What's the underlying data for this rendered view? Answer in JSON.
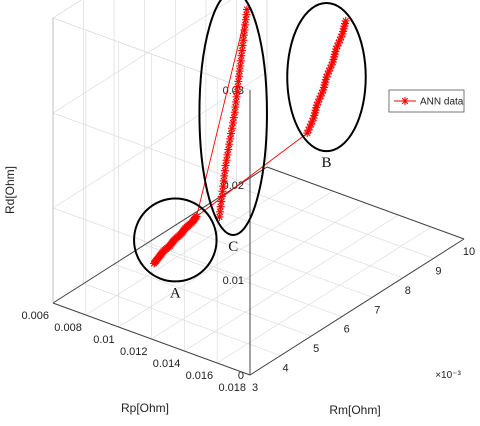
{
  "chart_data": {
    "type": "scatter3d",
    "title": "",
    "axes": {
      "x": {
        "label": "Rm[Ohm]",
        "ticks": [
          "3",
          "4",
          "5",
          "6",
          "7",
          "8",
          "9",
          "10"
        ],
        "range": [
          3,
          10
        ],
        "exponent_label": "×10⁻³"
      },
      "y": {
        "label": "Rp[Ohm]",
        "ticks": [
          "0.006",
          "0.008",
          "0.01",
          "0.012",
          "0.014",
          "0.016",
          "0.018"
        ],
        "range": [
          0.006,
          0.018
        ]
      },
      "z": {
        "label": "Rd[Ohm]",
        "ticks": [
          "0",
          "0.01",
          "0.02",
          "0.03"
        ],
        "range": [
          0,
          0.03
        ]
      }
    },
    "grid": true,
    "legend": {
      "position": "top-right",
      "entries": [
        "ANN data"
      ]
    },
    "series": [
      {
        "name": "ANN data",
        "color": "#ff0000",
        "marker": "asterisk",
        "clusters": [
          {
            "label": "A",
            "points": [
              [
                5.5,
                0.0075,
                0.0
              ],
              [
                5.6,
                0.0076,
                0.0005
              ],
              [
                5.7,
                0.0077,
                0.001
              ],
              [
                5.8,
                0.0079,
                0.0015
              ],
              [
                5.9,
                0.008,
                0.002
              ],
              [
                6.0,
                0.0082,
                0.0025
              ],
              [
                6.1,
                0.0083,
                0.003
              ],
              [
                6.2,
                0.0085,
                0.0035
              ],
              [
                6.3,
                0.0086,
                0.004
              ]
            ]
          },
          {
            "label": "B",
            "points": [
              [
                6.4,
                0.0175,
                0.03
              ],
              [
                6.4,
                0.0173,
                0.0285
              ],
              [
                6.3,
                0.0171,
                0.027
              ],
              [
                6.3,
                0.0169,
                0.0255
              ],
              [
                6.2,
                0.0167,
                0.024
              ],
              [
                6.2,
                0.0165,
                0.0225
              ],
              [
                6.1,
                0.0163,
                0.021
              ],
              [
                6.1,
                0.0161,
                0.0195
              ],
              [
                6.0,
                0.0159,
                0.018
              ]
            ]
          },
          {
            "label": "C",
            "points": [
              [
                7.8,
                0.0072,
                0.0
              ],
              [
                7.9,
                0.0072,
                0.0025
              ],
              [
                8.0,
                0.0072,
                0.005
              ],
              [
                8.15,
                0.0072,
                0.0075
              ],
              [
                8.3,
                0.0072,
                0.01
              ],
              [
                8.4,
                0.0072,
                0.0125
              ],
              [
                8.5,
                0.0072,
                0.015
              ],
              [
                8.6,
                0.0072,
                0.0175
              ],
              [
                8.7,
                0.0072,
                0.02
              ]
            ]
          }
        ],
        "connecting_lines": [
          [
            "A",
            "B"
          ],
          [
            "A",
            "C"
          ]
        ]
      }
    ]
  }
}
